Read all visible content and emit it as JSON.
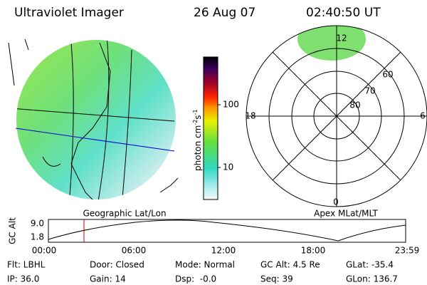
{
  "header": {
    "title": "Ultraviolet Imager",
    "date": "26 Aug 07",
    "time": "02:40:50 UT"
  },
  "colorbar": {
    "label": "photon cm",
    "exp1": "-2",
    "unit2": "s",
    "exp2": "-1",
    "ticks": [
      "100",
      "10"
    ]
  },
  "left_panel": {
    "caption": "Geographic Lat/Lon"
  },
  "right_panel": {
    "caption": "Apex MLat/MLT",
    "mlt_labels": [
      "12",
      "18",
      "6",
      "0"
    ],
    "lat_labels": [
      "60",
      "70",
      "80"
    ]
  },
  "altitude_plot": {
    "ylabel": "GC Alt",
    "yticks": [
      "9.0",
      "1.8"
    ],
    "xticks": [
      "00:00",
      "06:00",
      "12:00",
      "18:00",
      "23:59"
    ]
  },
  "footer": {
    "rows": [
      [
        "Flt: LBHL",
        "Door: Closed",
        "Mode: Normal",
        "GC Alt: 4.5 Re",
        "GLat: -35.4"
      ],
      [
        "IP: 36.0",
        "Gain: 14",
        "Dsp:  -0.0",
        "Seq: 39",
        "GLon: 136.7"
      ]
    ]
  }
}
